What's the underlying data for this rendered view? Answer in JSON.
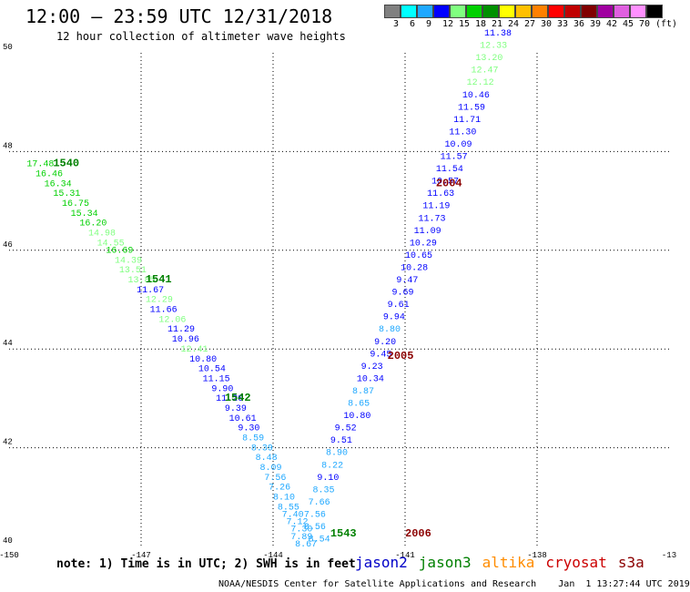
{
  "header": {
    "title": "12:00 – 23:59 UTC 12/31/2018",
    "subtitle": "12 hour collection of altimeter wave heights"
  },
  "legend": {
    "colors": [
      "#808080",
      "#00ffff",
      "#1fa8ff",
      "#0000ff",
      "#80ff80",
      "#00d000",
      "#009000",
      "#ffff00",
      "#ffc000",
      "#ff8000",
      "#ff0000",
      "#c00000",
      "#800000",
      "#a000a0",
      "#e060e0",
      "#ff90ff",
      "#000000"
    ],
    "labels": [
      "3",
      "6",
      "9",
      "12",
      "15",
      "18",
      "21",
      "24",
      "27",
      "30",
      "33",
      "36",
      "39",
      "42",
      "45",
      "70",
      "(ft)"
    ]
  },
  "footer": {
    "note": "note: 1) Time is in UTC; 2) SWH is in feet",
    "satellites": [
      {
        "name": "jason2",
        "color": "#0000c8"
      },
      {
        "name": "jason3",
        "color": "#008000"
      },
      {
        "name": "altika",
        "color": "#ff8c00"
      },
      {
        "name": "cryosat",
        "color": "#cc0000"
      },
      {
        "name": "s3a",
        "color": "#8b0000"
      }
    ],
    "credit": "NOAA/NESDIS Center for Satellite Applications and Research    Jan  1 13:27:44 UTC 2019"
  },
  "chart_data": {
    "type": "scatter",
    "title": "12 hour collection of altimeter wave heights",
    "xlim": [
      -150,
      -135
    ],
    "ylim": [
      40,
      50
    ],
    "x_ticks": [
      "-150",
      "-147",
      "-144",
      "-141",
      "-138",
      "-13"
    ],
    "y_ticks": [
      "40",
      "42",
      "44",
      "46",
      "48",
      "50"
    ],
    "grid": true,
    "colors": {
      "c3": "#808080",
      "c6": "#00ffff",
      "c9": "#1fa8ff",
      "c12": "#0000ff",
      "c15": "#80ff80",
      "c18": "#00d000",
      "c21": "#009000",
      "time_jason3": "#008000",
      "time_s3a": "#8b0000"
    },
    "tracks": [
      {
        "satellite": "jason3",
        "points": [
          [
            -149.6,
            47.7,
            "17.48"
          ],
          [
            -149.4,
            47.5,
            "16.46"
          ],
          [
            -149.2,
            47.3,
            "16.34"
          ],
          [
            -149.0,
            47.1,
            "15.31"
          ],
          [
            -148.8,
            46.9,
            "16.75"
          ],
          [
            -148.6,
            46.7,
            "15.34"
          ],
          [
            -148.4,
            46.5,
            "16.20"
          ],
          [
            -148.2,
            46.3,
            "14.98"
          ],
          [
            -148.0,
            46.1,
            "14.55"
          ],
          [
            -147.8,
            45.95,
            "16.69"
          ],
          [
            -147.6,
            45.75,
            "14.39"
          ],
          [
            -147.5,
            45.55,
            "13.51"
          ],
          [
            -147.3,
            45.35,
            "13.85"
          ],
          [
            -147.1,
            45.15,
            "11.67"
          ],
          [
            -146.9,
            44.95,
            "12.29"
          ],
          [
            -146.8,
            44.75,
            "11.66"
          ],
          [
            -146.6,
            44.55,
            "12.06"
          ],
          [
            -146.4,
            44.35,
            "11.29"
          ],
          [
            -146.3,
            44.15,
            "10.96"
          ],
          [
            -146.1,
            43.95,
            "12.41"
          ],
          [
            -145.9,
            43.75,
            "10.80"
          ],
          [
            -145.7,
            43.55,
            "10.54"
          ],
          [
            -145.6,
            43.35,
            "11.15"
          ],
          [
            -145.4,
            43.15,
            "9.90"
          ],
          [
            -145.3,
            42.95,
            "11.20"
          ],
          [
            -145.1,
            42.75,
            "9.39"
          ],
          [
            -145.0,
            42.55,
            "10.61"
          ],
          [
            -144.8,
            42.35,
            "9.30"
          ],
          [
            -144.7,
            42.15,
            "8.59"
          ],
          [
            -144.5,
            41.95,
            "8.39"
          ],
          [
            -144.4,
            41.75,
            "8.48"
          ],
          [
            -144.3,
            41.55,
            "8.09"
          ],
          [
            -144.2,
            41.35,
            "7.56"
          ],
          [
            -144.1,
            41.15,
            "7.26"
          ],
          [
            -144.0,
            40.95,
            "8.10"
          ],
          [
            -143.9,
            40.75,
            "8.55"
          ],
          [
            -143.8,
            40.6,
            "7.40"
          ],
          [
            -143.7,
            40.45,
            "7.12"
          ],
          [
            -143.6,
            40.3,
            "7.30"
          ],
          [
            -143.6,
            40.15,
            "7.89"
          ],
          [
            -143.5,
            40.0,
            "8.67"
          ]
        ],
        "times": [
          [
            -149.0,
            47.7,
            "1540"
          ],
          [
            -146.9,
            45.35,
            "1541"
          ],
          [
            -145.1,
            42.95,
            "1542"
          ],
          [
            -142.7,
            40.2,
            "1543"
          ]
        ]
      },
      {
        "satellite": "s3a",
        "points": [
          [
            -143.2,
            40.1,
            "8.54"
          ],
          [
            -143.3,
            40.35,
            "8.56"
          ],
          [
            -143.3,
            40.6,
            "7.56"
          ],
          [
            -143.2,
            40.85,
            "7.66"
          ],
          [
            -143.1,
            41.1,
            "8.35"
          ],
          [
            -143.0,
            41.35,
            "9.10"
          ],
          [
            -142.9,
            41.6,
            "8.22"
          ],
          [
            -142.8,
            41.85,
            "8.90"
          ],
          [
            -142.7,
            42.1,
            "9.51"
          ],
          [
            -142.6,
            42.35,
            "9.52"
          ],
          [
            -142.4,
            42.6,
            "10.80"
          ],
          [
            -142.3,
            42.85,
            "8.65"
          ],
          [
            -142.2,
            43.1,
            "8.87"
          ],
          [
            -142.1,
            43.35,
            "10.34"
          ],
          [
            -142.0,
            43.6,
            "9.23"
          ],
          [
            -141.8,
            43.85,
            "9.45"
          ],
          [
            -141.7,
            44.1,
            "9.20"
          ],
          [
            -141.6,
            44.35,
            "8.80"
          ],
          [
            -141.5,
            44.6,
            "9.94"
          ],
          [
            -141.4,
            44.85,
            "9.61"
          ],
          [
            -141.3,
            45.1,
            "9.69"
          ],
          [
            -141.2,
            45.35,
            "9.47"
          ],
          [
            -141.1,
            45.6,
            "10.28"
          ],
          [
            -141.0,
            45.85,
            "10.65"
          ],
          [
            -140.9,
            46.1,
            "10.29"
          ],
          [
            -140.8,
            46.35,
            "11.09"
          ],
          [
            -140.7,
            46.6,
            "11.73"
          ],
          [
            -140.6,
            46.85,
            "11.19"
          ],
          [
            -140.5,
            47.1,
            "11.63"
          ],
          [
            -140.4,
            47.35,
            "10.57"
          ],
          [
            -140.3,
            47.6,
            "11.54"
          ],
          [
            -140.2,
            47.85,
            "11.57"
          ],
          [
            -140.1,
            48.1,
            "10.09"
          ],
          [
            -140.0,
            48.35,
            "11.30"
          ],
          [
            -139.9,
            48.6,
            "11.71"
          ],
          [
            -139.8,
            48.85,
            "11.59"
          ],
          [
            -139.7,
            49.1,
            "10.46"
          ],
          [
            -139.6,
            49.35,
            "12.12"
          ],
          [
            -139.5,
            49.6,
            "12.47"
          ],
          [
            -139.4,
            49.85,
            "13.20"
          ],
          [
            -139.3,
            50.1,
            "12.33"
          ],
          [
            -139.2,
            50.35,
            "11.38"
          ]
        ],
        "times": [
          [
            -141.0,
            40.2,
            "2006"
          ],
          [
            -141.4,
            43.8,
            "2005"
          ],
          [
            -140.3,
            47.3,
            "2004"
          ]
        ]
      }
    ]
  }
}
